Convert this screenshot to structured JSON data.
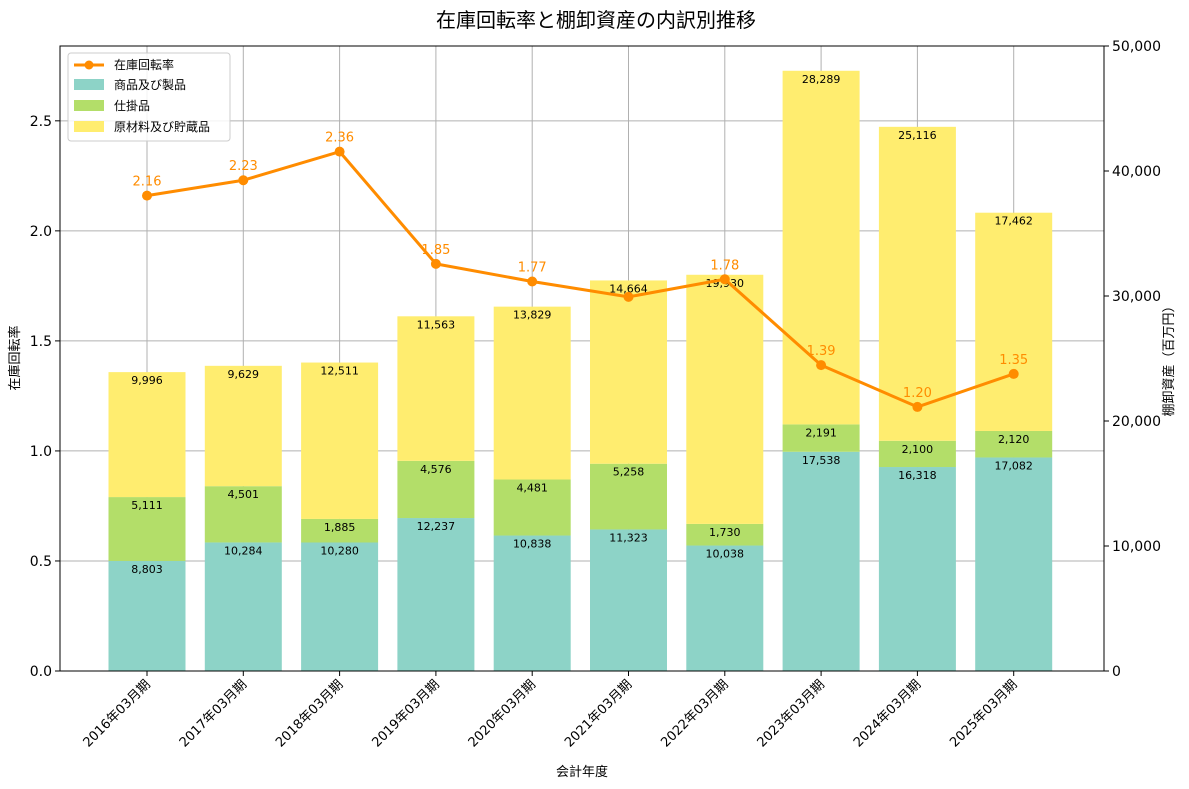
{
  "chart_data": {
    "type": "bar",
    "title": "在庫回転率と棚卸資産の内訳別推移",
    "xlabel": "会計年度",
    "ylabel_left": "在庫回転率",
    "ylabel_right": "棚卸資産（百万円）",
    "categories": [
      "2016年03月期",
      "2017年03月期",
      "2018年03月期",
      "2019年03月期",
      "2020年03月期",
      "2021年03月期",
      "2022年03月期",
      "2023年03月期",
      "2024年03月期",
      "2025年03月期"
    ],
    "left_ylim": [
      0,
      2.84
    ],
    "left_ticks": [
      "0.0",
      "0.5",
      "1.0",
      "1.5",
      "2.0",
      "2.5"
    ],
    "right_ylim": [
      0,
      50000
    ],
    "right_ticks": [
      "0",
      "10,000",
      "20,000",
      "30,000",
      "40,000",
      "50,000"
    ],
    "grid": true,
    "legend_position": "top-left",
    "stacked_series": [
      {
        "name": "商品及び製品",
        "color": "#8dd3c7",
        "values": [
          8803,
          10284,
          10280,
          12237,
          10838,
          11323,
          10038,
          17538,
          16318,
          17082
        ],
        "labels": [
          "8,803",
          "10,284",
          "10,280",
          "12,237",
          "10,838",
          "11,323",
          "10,038",
          "17,538",
          "16,318",
          "17,082"
        ]
      },
      {
        "name": "仕掛品",
        "color": "#b3de69",
        "values": [
          5111,
          4501,
          1885,
          4576,
          4481,
          5258,
          1730,
          2191,
          2100,
          2120
        ],
        "labels": [
          "5,111",
          "4,501",
          "1,885",
          "4,576",
          "4,481",
          "5,258",
          "1,730",
          "2,191",
          "2,100",
          "2,120"
        ]
      },
      {
        "name": "原材料及び貯蔵品",
        "color": "#ffed6f",
        "values": [
          9996,
          9629,
          12511,
          11563,
          13829,
          14664,
          19930,
          28289,
          25116,
          17462
        ],
        "labels": [
          "9,996",
          "9,629",
          "12,511",
          "11,563",
          "13,829",
          "14,664",
          "19,930",
          "28,289",
          "25,116",
          "17,462"
        ]
      }
    ],
    "line_series": {
      "name": "在庫回転率",
      "color": "#ff8c00",
      "values": [
        2.16,
        2.23,
        2.36,
        1.85,
        1.77,
        1.7,
        1.78,
        1.39,
        1.2,
        1.35
      ],
      "labels": [
        "2.16",
        "2.23",
        "2.36",
        "1.85",
        "1.77",
        "",
        "1.78",
        "1.39",
        "1.20",
        "1.35"
      ]
    }
  }
}
